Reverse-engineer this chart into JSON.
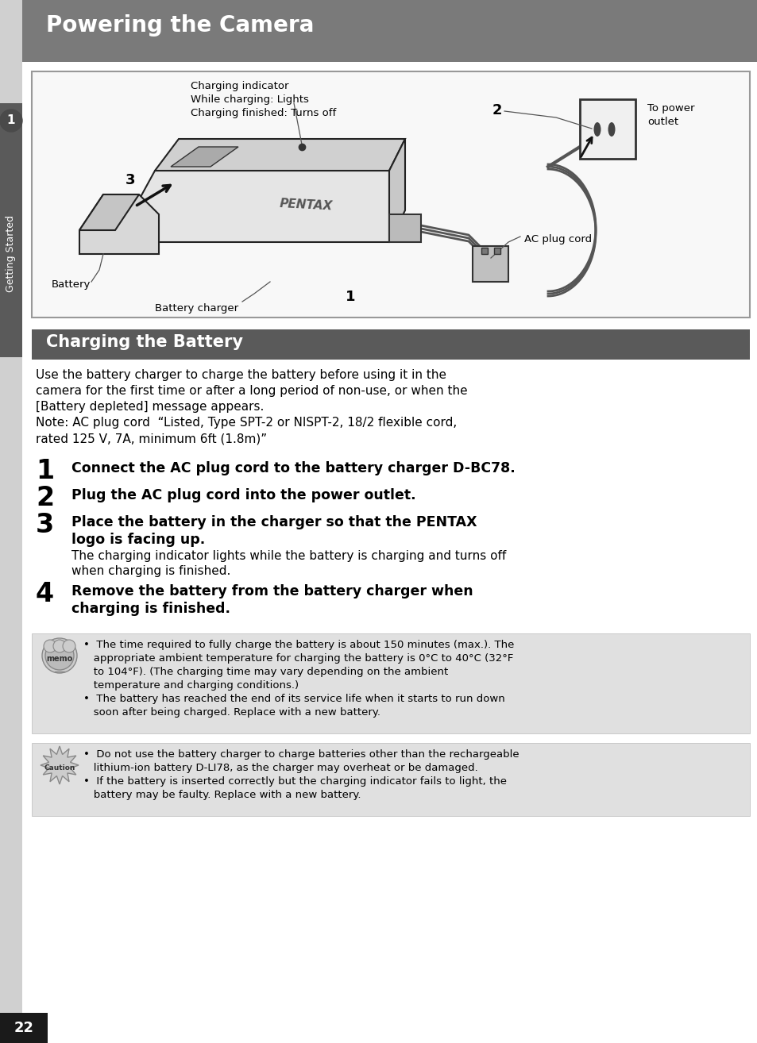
{
  "page_bg": "#e8e8e8",
  "content_bg": "#ffffff",
  "header_bg": "#7a7a7a",
  "header_text": "Powering the Camera",
  "header_text_color": "#ffffff",
  "section_header_bg": "#5a5a5a",
  "section_header_text": "Charging the Battery",
  "section_header_text_color": "#ffffff",
  "left_sidebar_bg": "#d0d0d0",
  "left_tab_bg": "#5a5a5a",
  "left_tab_text": "Getting Started",
  "page_number": "22",
  "page_number_bg": "#1a1a1a",
  "diagram_labels": {
    "charging_indicator": "Charging indicator\nWhile charging: Lights\nCharging finished: Turns off",
    "number2": "2",
    "to_power_outlet": "To power\noutlet",
    "number3": "3",
    "battery": "Battery",
    "battery_charger": "Battery charger",
    "number1": "1",
    "ac_plug_cord": "AC plug cord"
  },
  "intro_lines": [
    "Use the battery charger to charge the battery before using it in the",
    "camera for the first time or after a long period of non-use, or when the",
    "[Battery depleted] message appears.",
    "Note: AC plug cord  “Listed, Type SPT-2 or NISPT-2, 18/2 flexible cord,",
    "rated 125 V, 7A, minimum 6ft (1.8m)”"
  ],
  "step1_num": "1",
  "step1_text": "Connect the AC plug cord to the battery charger D-BC78.",
  "step2_num": "2",
  "step2_text": "Plug the AC plug cord into the power outlet.",
  "step3_num": "3",
  "step3_line1": "Place the battery in the charger so that the PENTAX",
  "step3_line2": "logo is facing up.",
  "step3_sub_line1": "The charging indicator lights while the battery is charging and turns off",
  "step3_sub_line2": "when charging is finished.",
  "step4_num": "4",
  "step4_line1": "Remove the battery from the battery charger when",
  "step4_line2": "charging is finished.",
  "memo_bg": "#e0e0e0",
  "memo_bullet1_lines": [
    "•  The time required to fully charge the battery is about 150 minutes (max.). The",
    "   appropriate ambient temperature for charging the battery is 0°C to 40°C (32°F",
    "   to 104°F). (The charging time may vary depending on the ambient",
    "   temperature and charging conditions.)"
  ],
  "memo_bullet2_lines": [
    "•  The battery has reached the end of its service life when it starts to run down",
    "   soon after being charged. Replace with a new battery."
  ],
  "caution_bg": "#e0e0e0",
  "caution_bullet1_lines": [
    "•  Do not use the battery charger to charge batteries other than the rechargeable",
    "   lithium-ion battery D-LI78, as the charger may overheat or be damaged."
  ],
  "caution_bullet2_lines": [
    "•  If the battery is inserted correctly but the charging indicator fails to light, the",
    "   battery may be faulty. Replace with a new battery."
  ]
}
